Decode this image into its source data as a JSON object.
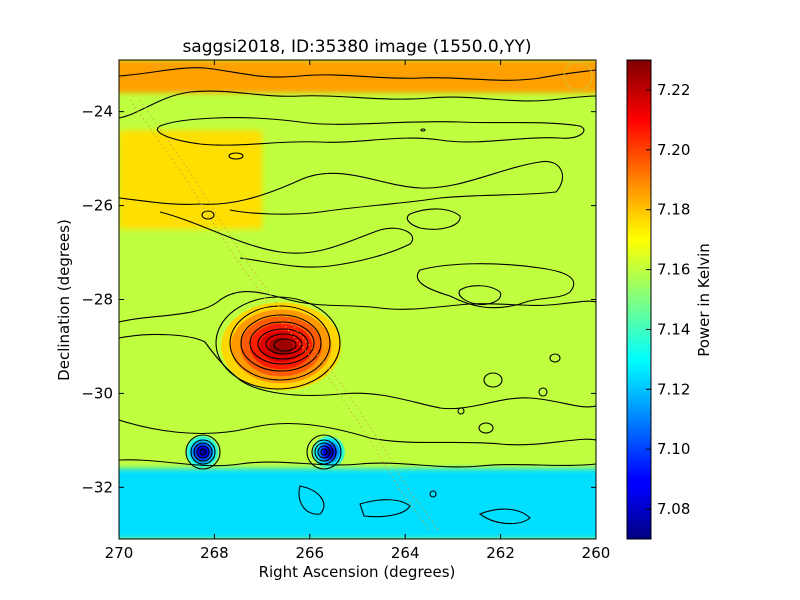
{
  "chart_data": {
    "type": "heatmap",
    "title": "saggsi2018, ID:35380 image (1550.0,YY)",
    "xlabel": "Right Ascension (degrees)",
    "ylabel": "Declination (degrees)",
    "colorbar_label": "Power in Kelvin",
    "xlim": [
      270,
      260
    ],
    "ylim": [
      -33.1,
      -22.9
    ],
    "x_ticks": [
      270,
      268,
      266,
      264,
      262,
      260
    ],
    "x_tick_labels": [
      "270",
      "268",
      "266",
      "264",
      "262",
      "260"
    ],
    "y_ticks": [
      -24,
      -26,
      -28,
      -30,
      -32
    ],
    "y_tick_labels": [
      "−24",
      "−26",
      "−28",
      "−30",
      "−32"
    ],
    "colorbar_range": [
      7.07,
      7.23
    ],
    "colorbar_ticks": [
      7.08,
      7.1,
      7.12,
      7.14,
      7.16,
      7.18,
      7.2,
      7.22
    ],
    "colorbar_tick_labels": [
      "7.08",
      "7.10",
      "7.12",
      "7.14",
      "7.16",
      "7.18",
      "7.20",
      "7.22"
    ],
    "colormap": "jet",
    "background_level": 7.16,
    "regions": [
      {
        "feature": "warm band along top edge",
        "dec_range": [
          -23.6,
          -22.9
        ],
        "value": 7.185
      },
      {
        "feature": "warm patch, upper left",
        "ra_range": [
          267.0,
          270.0
        ],
        "dec_range": [
          -26.5,
          -24.4
        ],
        "value": 7.175
      },
      {
        "feature": "cool band along bottom edge",
        "dec_range": [
          -33.1,
          -31.6
        ],
        "value": 7.125
      }
    ],
    "peaks": [
      {
        "ra": 266.6,
        "dec": -29.0,
        "value": 7.225,
        "kind": "maximum"
      },
      {
        "ra": 268.25,
        "dec": -31.25,
        "value": 7.075,
        "kind": "minimum"
      },
      {
        "ra": 265.6,
        "dec": -31.25,
        "value": 7.075,
        "kind": "minimum"
      }
    ]
  }
}
